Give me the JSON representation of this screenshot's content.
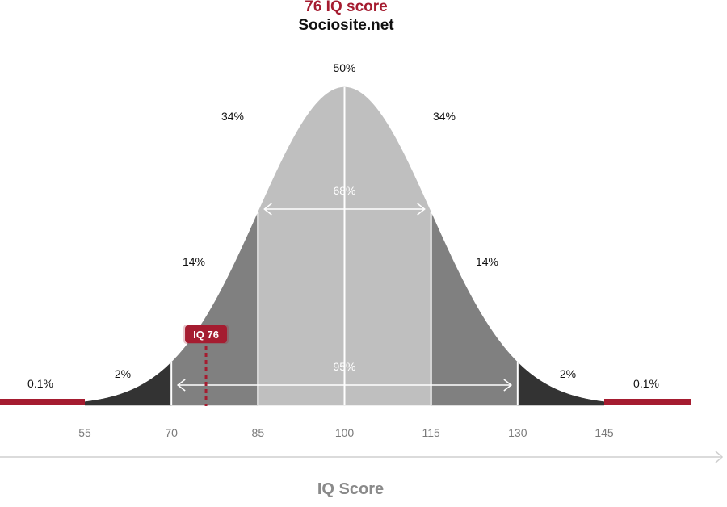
{
  "title": "76 IQ score",
  "subtitle": "Sociosite.net",
  "colors": {
    "accent": "#a51c30",
    "tail": "#333333",
    "band_2sd": "#808080",
    "band_1sd": "#bfbfbf",
    "tick_text": "#7a7a7a",
    "axis_line": "#cfcfcf"
  },
  "chart_data": {
    "type": "area",
    "title": "76 IQ score",
    "subtitle": "Sociosite.net",
    "xlabel": "IQ Score",
    "ylabel": "",
    "xlim": [
      55,
      145
    ],
    "mean": 100,
    "sd": 15,
    "ticks": [
      55,
      70,
      85,
      100,
      115,
      130,
      145
    ],
    "tick_labels": [
      "55",
      "70",
      "85",
      "100",
      "115",
      "130",
      "145"
    ],
    "band_percentages": [
      {
        "label": "0.1%",
        "from": 40,
        "to": 55
      },
      {
        "label": "2%",
        "from": 55,
        "to": 70
      },
      {
        "label": "14%",
        "from": 70,
        "to": 85
      },
      {
        "label": "34%",
        "from": 85,
        "to": 100
      },
      {
        "label": "34%",
        "from": 100,
        "to": 115
      },
      {
        "label": "14%",
        "from": 115,
        "to": 130
      },
      {
        "label": "2%",
        "from": 130,
        "to": 145
      },
      {
        "label": "0.1%",
        "from": 145,
        "to": 160
      }
    ],
    "peak_label": "50%",
    "spans": [
      {
        "label": "68%",
        "from": 85,
        "to": 115
      },
      {
        "label": "95%",
        "from": 70,
        "to": 130
      }
    ],
    "marker": {
      "label": "IQ 76",
      "x": 76
    }
  }
}
